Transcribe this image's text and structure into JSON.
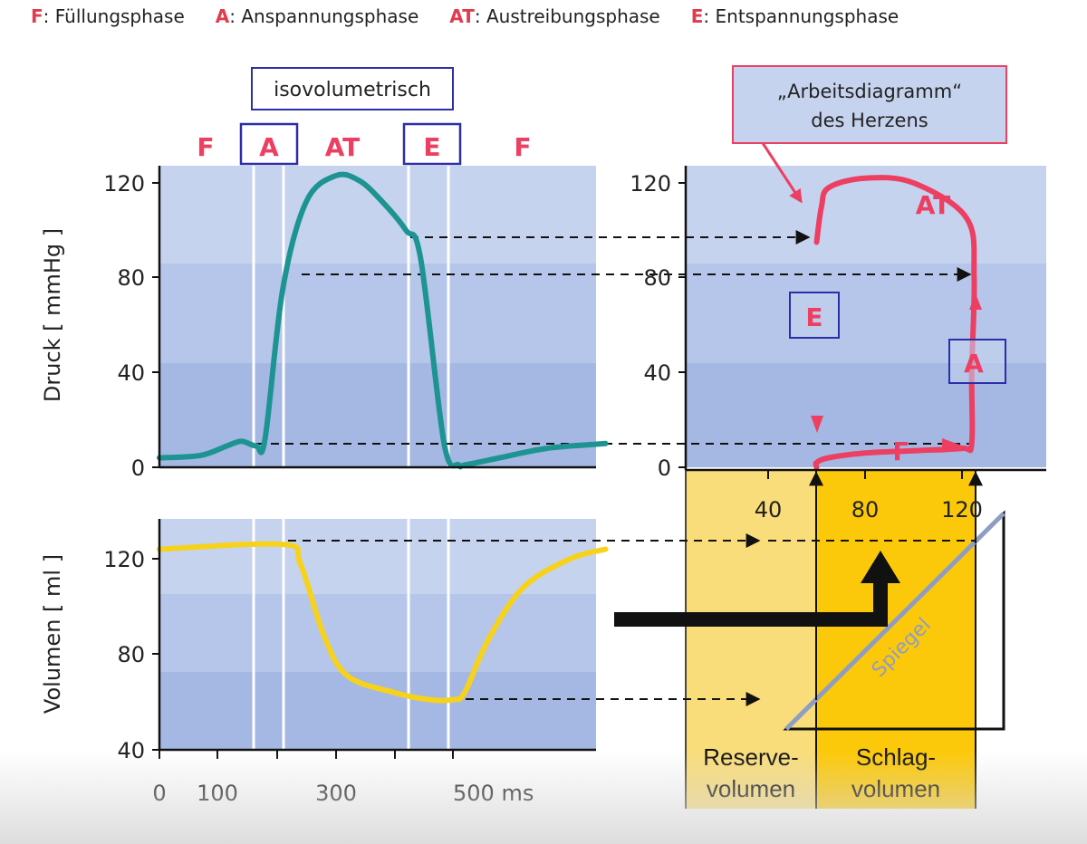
{
  "legend": [
    {
      "key": "F",
      "text": ": Füllungsphase"
    },
    {
      "key": "A",
      "text": ": Anspannungsphase"
    },
    {
      "key": "AT",
      "text": ": Austreibungsphase"
    },
    {
      "key": "E",
      "text": ": Entspannungsphase"
    }
  ],
  "labels": {
    "isovolumetric": "isovolumetrisch",
    "phase_F1": "F",
    "phase_A": "A",
    "phase_AT": "AT",
    "phase_E": "E",
    "phase_F2": "F",
    "work_title_1": "„Arbeitsdiagramm“",
    "work_title_2": "des Herzens",
    "loop_AT": "AT",
    "loop_E": "E",
    "loop_A": "A",
    "loop_F": "F",
    "mirror": "Spiegel",
    "reserve_1": "Reserve-",
    "reserve_2": "volumen",
    "stroke_1": "Schlag-",
    "stroke_2": "volumen"
  },
  "axes": {
    "pressure_ylabel": "Druck [ mmHg ]",
    "volume_ylabel": "Volumen [ ml ]",
    "pressure_ticks": [
      "120",
      "80",
      "40",
      "0"
    ],
    "volume_ticks": [
      "120",
      "80",
      "40"
    ],
    "time_ticks": [
      "0",
      "100",
      "300",
      "500 ms"
    ],
    "loop_pressure_ticks": [
      "120",
      "80",
      "40",
      "0"
    ],
    "loop_volume_ticks": [
      "40",
      "80",
      "120"
    ]
  },
  "colors": {
    "pressure_curve": "#1d9492",
    "volume_curve": "#f7d21c",
    "loop": "#ec3f62",
    "highlight_box": "#2a2fa8",
    "reserve_fill": "#f9dd7a",
    "stroke_fill": "#fcc90a",
    "mirror": "#8e9dc4",
    "panel_light": "#c6d3ef",
    "panel_dark": "#a4b8e3"
  },
  "chart_data": [
    {
      "type": "line",
      "x_unit": "ms",
      "ylim": [
        0,
        130
      ],
      "series": [
        {
          "x": [
            0,
            70,
            115,
            140,
            165,
            180,
            210,
            250,
            300,
            340,
            380,
            420,
            445,
            485,
            510,
            520,
            580,
            660,
            760
          ],
          "values": [
            4,
            5,
            9,
            11,
            9,
            12,
            75,
            112,
            123,
            121,
            112,
            100,
            88,
            10,
            1,
            1,
            4,
            8,
            10
          ]
        }
      ]
    },
    {
      "type": "line",
      "x_unit": "ms",
      "ylim": [
        40,
        135
      ],
      "series": [
        {
          "x": [
            0,
            210,
            240,
            280,
            320,
            400,
            460,
            500,
            520,
            560,
            620,
            700,
            760
          ],
          "values": [
            124,
            126,
            118,
            88,
            71,
            64,
            61,
            61,
            64,
            86,
            108,
            120,
            124
          ]
        }
      ]
    },
    {
      "type": "line",
      "xlim": [
        0,
        135
      ],
      "ylim": [
        0,
        130
      ],
      "series": [
        {
          "x": [
            60,
            60,
            65,
            80,
            100,
            120,
            124,
            124,
            125,
            122,
            100,
            80,
            65,
            62,
            60
          ],
          "values": [
            0,
            2,
            4,
            6,
            7,
            8,
            10,
            40,
            80,
            105,
            120,
            122,
            118,
            110,
            95
          ]
        }
      ]
    }
  ]
}
